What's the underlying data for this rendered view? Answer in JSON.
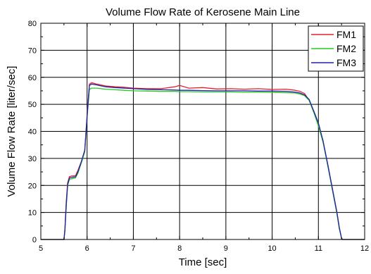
{
  "chart_data": {
    "type": "line",
    "title": "Volume Flow Rate of Kerosene Main Line",
    "xlabel": "Time [sec]",
    "ylabel": "Volume Flow Rate [liter/sec]",
    "xlim": [
      5,
      12
    ],
    "ylim": [
      0,
      80
    ],
    "xticks": [
      5,
      6,
      7,
      8,
      9,
      10,
      11,
      12
    ],
    "yticks": [
      0,
      10,
      20,
      30,
      40,
      50,
      60,
      70,
      80
    ],
    "grid": true,
    "legend_position": "top-right",
    "series": [
      {
        "name": "FM1",
        "color": "#e8202a",
        "x": [
          5.0,
          5.5,
          5.52,
          5.55,
          5.58,
          5.62,
          5.68,
          5.75,
          5.8,
          5.88,
          5.95,
          6.0,
          6.05,
          6.1,
          6.2,
          6.4,
          6.6,
          6.8,
          7.0,
          7.3,
          7.6,
          7.9,
          8.0,
          8.2,
          8.5,
          8.8,
          9.1,
          9.4,
          9.7,
          10.0,
          10.3,
          10.5,
          10.6,
          10.7,
          10.8,
          10.9,
          11.0,
          11.1,
          11.2,
          11.3,
          11.4,
          11.45,
          11.5,
          11.52,
          12.0
        ],
        "y": [
          0,
          0,
          4,
          14,
          21,
          23.3,
          23.5,
          23.6,
          25.5,
          29,
          33,
          46,
          57.5,
          58,
          57.5,
          56.8,
          56.5,
          56.3,
          56,
          55.8,
          55.8,
          56.5,
          57,
          56,
          56.2,
          55.7,
          55.8,
          55.6,
          55.8,
          55.5,
          55.6,
          55.2,
          54.8,
          54,
          51.5,
          47.5,
          43,
          36,
          28,
          19,
          10,
          4.5,
          0.5,
          0,
          0
        ]
      },
      {
        "name": "FM2",
        "color": "#22cc22",
        "x": [
          5.0,
          5.5,
          5.52,
          5.55,
          5.58,
          5.62,
          5.68,
          5.75,
          5.8,
          5.88,
          5.95,
          6.0,
          6.05,
          6.1,
          6.2,
          6.4,
          6.6,
          6.8,
          7.0,
          7.3,
          7.6,
          7.9,
          8.0,
          8.2,
          8.5,
          8.8,
          9.1,
          9.4,
          9.7,
          10.0,
          10.3,
          10.5,
          10.6,
          10.7,
          10.8,
          10.9,
          11.0,
          11.1,
          11.2,
          11.3,
          11.4,
          11.45,
          11.5,
          11.52,
          12.0
        ],
        "y": [
          0,
          0,
          3,
          12,
          20,
          22.3,
          22.5,
          22.8,
          24.5,
          28.5,
          32.5,
          45,
          55.5,
          56,
          56,
          55.6,
          55.4,
          55.2,
          55,
          54.9,
          54.8,
          54.8,
          54.7,
          54.7,
          54.6,
          54.6,
          54.6,
          54.5,
          54.5,
          54.4,
          54.3,
          54.2,
          53.8,
          53.2,
          51.5,
          47,
          42,
          36,
          27.5,
          18.5,
          9.5,
          4,
          0.5,
          0,
          0
        ]
      },
      {
        "name": "FM3",
        "color": "#2020aa",
        "x": [
          5.0,
          5.5,
          5.52,
          5.55,
          5.58,
          5.62,
          5.68,
          5.75,
          5.8,
          5.88,
          5.95,
          6.0,
          6.05,
          6.1,
          6.2,
          6.4,
          6.6,
          6.8,
          7.0,
          7.3,
          7.6,
          7.9,
          8.0,
          8.2,
          8.5,
          8.8,
          9.1,
          9.4,
          9.7,
          10.0,
          10.3,
          10.5,
          10.6,
          10.7,
          10.8,
          10.9,
          11.0,
          11.1,
          11.2,
          11.3,
          11.4,
          11.45,
          11.5,
          11.52,
          12.0
        ],
        "y": [
          0,
          0,
          3.5,
          13,
          20.5,
          22.8,
          23,
          23.2,
          25,
          29,
          33,
          45.5,
          57,
          57.5,
          57.2,
          56.5,
          56.2,
          56,
          55.8,
          55.5,
          55.4,
          55.3,
          55.2,
          55.2,
          55.1,
          55,
          55,
          55,
          54.9,
          54.9,
          54.8,
          54.5,
          54.2,
          53.5,
          51.8,
          47.5,
          43,
          36.5,
          28,
          19,
          10,
          4.5,
          0.5,
          0,
          0
        ]
      }
    ]
  }
}
